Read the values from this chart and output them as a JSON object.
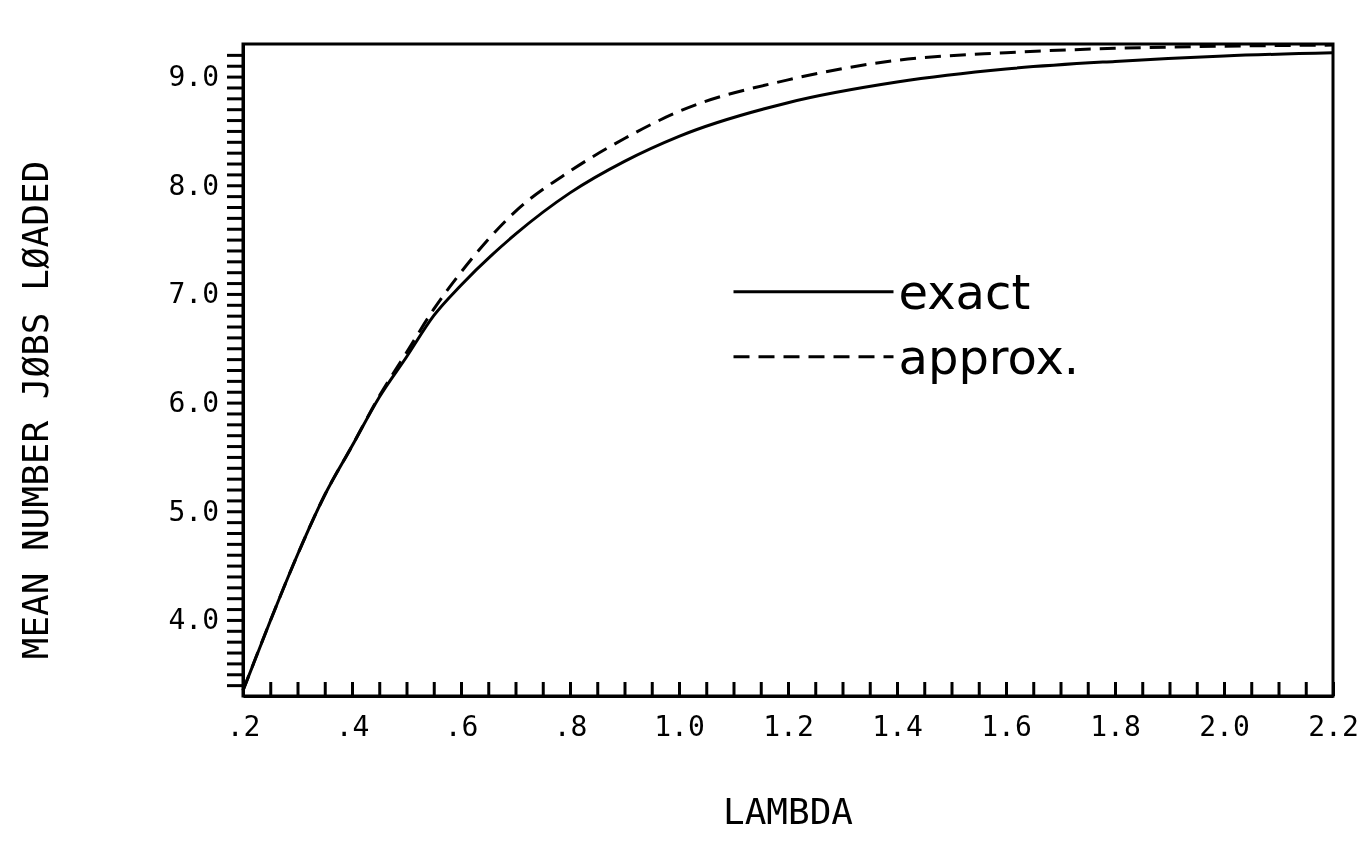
{
  "chart_data": {
    "type": "line",
    "xlabel": "LAMBDA",
    "ylabel": "MEAN NUMBER JØBS LØADED",
    "x": [
      0.2,
      0.25,
      0.3,
      0.35,
      0.4,
      0.45,
      0.5,
      0.55,
      0.6,
      0.7,
      0.8,
      0.9,
      1.0,
      1.2,
      1.4,
      1.6,
      1.8,
      2.0,
      2.2
    ],
    "series": [
      {
        "name": "exact",
        "color": "#000000",
        "line_style": "solid",
        "values": [
          3.35,
          3.99,
          4.6,
          5.15,
          5.6,
          6.05,
          6.42,
          6.8,
          7.08,
          7.55,
          7.93,
          8.22,
          8.45,
          8.76,
          8.95,
          9.07,
          9.14,
          9.19,
          9.22
        ]
      },
      {
        "name": "approx.",
        "color": "#000000",
        "line_style": "dashed",
        "values": [
          3.35,
          3.99,
          4.6,
          5.15,
          5.6,
          6.06,
          6.46,
          6.86,
          7.2,
          7.76,
          8.13,
          8.43,
          8.68,
          8.97,
          9.15,
          9.22,
          9.26,
          9.28,
          9.29
        ]
      }
    ],
    "xlim": [
      0.2,
      2.2
    ],
    "ylim": [
      3.3,
      9.3
    ],
    "xticks": [
      {
        "value": 0.2,
        "label": ".2"
      },
      {
        "value": 0.25,
        "label": null
      },
      {
        "value": 0.3,
        "label": null
      },
      {
        "value": 0.35,
        "label": null
      },
      {
        "value": 0.4,
        "label": ".4"
      },
      {
        "value": 0.45,
        "label": null
      },
      {
        "value": 0.5,
        "label": null
      },
      {
        "value": 0.55,
        "label": null
      },
      {
        "value": 0.6,
        "label": ".6"
      },
      {
        "value": 0.65,
        "label": null
      },
      {
        "value": 0.7,
        "label": null
      },
      {
        "value": 0.75,
        "label": null
      },
      {
        "value": 0.8,
        "label": ".8"
      },
      {
        "value": 0.85,
        "label": null
      },
      {
        "value": 0.9,
        "label": null
      },
      {
        "value": 0.95,
        "label": null
      },
      {
        "value": 1.0,
        "label": "1.0"
      },
      {
        "value": 1.05,
        "label": null
      },
      {
        "value": 1.1,
        "label": null
      },
      {
        "value": 1.15,
        "label": null
      },
      {
        "value": 1.2,
        "label": "1.2"
      },
      {
        "value": 1.25,
        "label": null
      },
      {
        "value": 1.3,
        "label": null
      },
      {
        "value": 1.35,
        "label": null
      },
      {
        "value": 1.4,
        "label": "1.4"
      },
      {
        "value": 1.45,
        "label": null
      },
      {
        "value": 1.5,
        "label": null
      },
      {
        "value": 1.55,
        "label": null
      },
      {
        "value": 1.6,
        "label": "1.6"
      },
      {
        "value": 1.65,
        "label": null
      },
      {
        "value": 1.7,
        "label": null
      },
      {
        "value": 1.75,
        "label": null
      },
      {
        "value": 1.8,
        "label": "1.8"
      },
      {
        "value": 1.85,
        "label": null
      },
      {
        "value": 1.9,
        "label": null
      },
      {
        "value": 1.95,
        "label": null
      },
      {
        "value": 2.0,
        "label": "2.0"
      },
      {
        "value": 2.05,
        "label": null
      },
      {
        "value": 2.1,
        "label": null
      },
      {
        "value": 2.15,
        "label": null
      },
      {
        "value": 2.2,
        "label": "2.2"
      }
    ],
    "yticks": [
      {
        "value": 3.4,
        "label": null
      },
      {
        "value": 3.5,
        "label": null
      },
      {
        "value": 3.6,
        "label": null
      },
      {
        "value": 3.7,
        "label": null
      },
      {
        "value": 3.8,
        "label": null
      },
      {
        "value": 3.9,
        "label": null
      },
      {
        "value": 4.0,
        "label": "4.0"
      },
      {
        "value": 4.1,
        "label": null
      },
      {
        "value": 4.2,
        "label": null
      },
      {
        "value": 4.3,
        "label": null
      },
      {
        "value": 4.4,
        "label": null
      },
      {
        "value": 4.5,
        "label": null
      },
      {
        "value": 4.6,
        "label": null
      },
      {
        "value": 4.7,
        "label": null
      },
      {
        "value": 4.8,
        "label": null
      },
      {
        "value": 4.9,
        "label": null
      },
      {
        "value": 5.0,
        "label": "5.0"
      },
      {
        "value": 5.1,
        "label": null
      },
      {
        "value": 5.2,
        "label": null
      },
      {
        "value": 5.3,
        "label": null
      },
      {
        "value": 5.4,
        "label": null
      },
      {
        "value": 5.5,
        "label": null
      },
      {
        "value": 5.6,
        "label": null
      },
      {
        "value": 5.7,
        "label": null
      },
      {
        "value": 5.8,
        "label": null
      },
      {
        "value": 5.9,
        "label": null
      },
      {
        "value": 6.0,
        "label": "6.0"
      },
      {
        "value": 6.1,
        "label": null
      },
      {
        "value": 6.2,
        "label": null
      },
      {
        "value": 6.3,
        "label": null
      },
      {
        "value": 6.4,
        "label": null
      },
      {
        "value": 6.5,
        "label": null
      },
      {
        "value": 6.6,
        "label": null
      },
      {
        "value": 6.7,
        "label": null
      },
      {
        "value": 6.8,
        "label": null
      },
      {
        "value": 6.9,
        "label": null
      },
      {
        "value": 7.0,
        "label": "7.0"
      },
      {
        "value": 7.1,
        "label": null
      },
      {
        "value": 7.2,
        "label": null
      },
      {
        "value": 7.3,
        "label": null
      },
      {
        "value": 7.4,
        "label": null
      },
      {
        "value": 7.5,
        "label": null
      },
      {
        "value": 7.6,
        "label": null
      },
      {
        "value": 7.7,
        "label": null
      },
      {
        "value": 7.8,
        "label": null
      },
      {
        "value": 7.9,
        "label": null
      },
      {
        "value": 8.0,
        "label": "8.0"
      },
      {
        "value": 8.1,
        "label": null
      },
      {
        "value": 8.2,
        "label": null
      },
      {
        "value": 8.3,
        "label": null
      },
      {
        "value": 8.4,
        "label": null
      },
      {
        "value": 8.5,
        "label": null
      },
      {
        "value": 8.6,
        "label": null
      },
      {
        "value": 8.7,
        "label": null
      },
      {
        "value": 8.8,
        "label": null
      },
      {
        "value": 8.9,
        "label": null
      },
      {
        "value": 9.0,
        "label": "9.0"
      },
      {
        "value": 9.1,
        "label": null
      },
      {
        "value": 9.2,
        "label": null
      }
    ],
    "grid": false,
    "legend": "right",
    "marker": "none"
  }
}
